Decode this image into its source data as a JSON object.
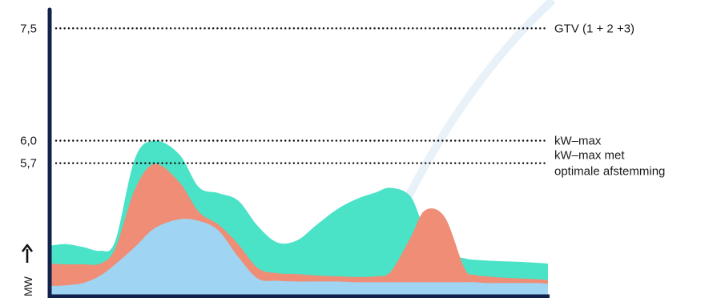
{
  "chart_data": {
    "type": "area",
    "stacked": true,
    "ylabel": "MW",
    "xlabel": "",
    "ylim": [
      3.9,
      7.75
    ],
    "x": [
      0,
      0.3,
      0.65,
      1.0,
      1.3,
      1.7,
      2.1,
      2.6,
      3.0,
      3.4,
      3.8,
      4.2,
      4.6,
      5.0,
      5.4,
      5.8,
      6.2,
      6.6,
      6.9,
      7.3,
      7.6,
      8.0,
      8.4,
      8.6,
      8.85,
      9.2,
      9.6,
      9.9,
      10.1
    ],
    "xlim": [
      0,
      10.1
    ],
    "yticks": [
      {
        "value": 7.5,
        "label": "7,5"
      },
      {
        "value": 6.0,
        "label": "6,0"
      },
      {
        "value": 5.7,
        "label": "5,7"
      }
    ],
    "reference_lines": [
      {
        "value": 7.5,
        "label_lines": [
          "GTV (1 + 2 +3)"
        ]
      },
      {
        "value": 6.0,
        "label_lines": [
          "kW–max"
        ]
      },
      {
        "value": 5.7,
        "label_lines": [
          "kW–max met",
          "optimale afstemming"
        ]
      }
    ],
    "series": [
      {
        "color": "#9fd5f2",
        "top": [
          4.06,
          4.07,
          4.1,
          4.2,
          4.35,
          4.58,
          4.83,
          4.95,
          4.93,
          4.8,
          4.45,
          4.16,
          4.13,
          4.12,
          4.12,
          4.12,
          4.11,
          4.11,
          4.11,
          4.11,
          4.11,
          4.11,
          4.11,
          4.11,
          4.1,
          4.1,
          4.1,
          4.1,
          4.09
        ]
      },
      {
        "color": "#ef8d76",
        "top": [
          4.36,
          4.35,
          4.35,
          4.36,
          4.56,
          5.35,
          5.69,
          5.45,
          5.05,
          4.88,
          4.62,
          4.3,
          4.23,
          4.22,
          4.2,
          4.19,
          4.18,
          4.19,
          4.25,
          4.7,
          5.07,
          4.98,
          4.3,
          4.21,
          4.19,
          4.17,
          4.16,
          4.15,
          4.14
        ]
      },
      {
        "color": "#4ae3c7",
        "top": [
          4.6,
          4.62,
          4.58,
          4.53,
          4.66,
          5.76,
          6.0,
          5.82,
          5.38,
          5.3,
          5.2,
          4.86,
          4.64,
          4.67,
          4.88,
          5.08,
          5.22,
          5.31,
          5.37,
          5.26,
          4.82,
          4.5,
          4.43,
          4.41,
          4.4,
          4.39,
          4.38,
          4.37,
          4.36
        ]
      }
    ]
  }
}
